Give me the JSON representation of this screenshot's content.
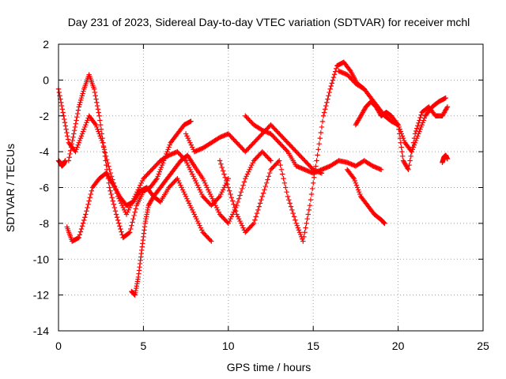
{
  "chart_data": {
    "type": "scatter",
    "title": "Day 231 of 2023, Sidereal Day-to-day VTEC variation (SDTVAR) for receiver mchl",
    "xlabel": "GPS time / hours",
    "ylabel": "SDTVAR / TECUs",
    "xlim": [
      0,
      25
    ],
    "ylim": [
      -14,
      2
    ],
    "xticks": [
      0,
      5,
      10,
      15,
      20,
      25
    ],
    "yticks": [
      -14,
      -12,
      -10,
      -8,
      -6,
      -4,
      -2,
      0,
      2
    ],
    "grid": true,
    "marker": "plus",
    "color": "#ff0000",
    "series": [
      {
        "name": "s1",
        "x": [
          0,
          0.3,
          0.6,
          1.0,
          1.4,
          1.8,
          2.2,
          2.6,
          3.0,
          3.5,
          4.0,
          4.5,
          5.0,
          5.5,
          6.0,
          6.5,
          7.0,
          7.5,
          8.0,
          8.5,
          9.0,
          9.5,
          10.0
        ],
        "y": [
          -0.5,
          -2.0,
          -3.5,
          -4.0,
          -3.0,
          -2.0,
          -2.5,
          -3.5,
          -5.0,
          -6.5,
          -7.5,
          -6.5,
          -5.5,
          -5.0,
          -4.5,
          -4.2,
          -4.0,
          -4.5,
          -5.5,
          -6.5,
          -7.0,
          -6.5,
          -5.5
        ]
      },
      {
        "name": "s2",
        "x": [
          0.6,
          0.9,
          1.2,
          1.5,
          1.8,
          2.1,
          2.4,
          2.7,
          3.0,
          3.4,
          3.8,
          4.2,
          4.6,
          5.0,
          5.4,
          5.8,
          6.2,
          6.6,
          7.0,
          7.4,
          7.8
        ],
        "y": [
          -4.5,
          -3.0,
          -1.5,
          -0.5,
          0.3,
          -0.5,
          -2.0,
          -4.0,
          -6.0,
          -7.5,
          -8.8,
          -8.5,
          -7.0,
          -6.2,
          -6.0,
          -5.5,
          -4.5,
          -3.5,
          -3.0,
          -2.5,
          -2.3
        ]
      },
      {
        "name": "s3",
        "x": [
          0.5,
          0.8,
          1.2,
          1.6,
          2.0,
          2.4,
          2.8,
          3.2,
          3.6,
          4.0,
          4.4,
          4.8,
          5.2,
          5.6,
          6.0,
          6.5,
          7.0,
          7.5,
          8.0,
          8.5,
          9.0
        ],
        "y": [
          -8.2,
          -9.0,
          -8.8,
          -7.5,
          -6.0,
          -5.5,
          -5.2,
          -5.8,
          -6.5,
          -7.0,
          -6.8,
          -6.2,
          -6.0,
          -6.5,
          -6.8,
          -6.0,
          -5.5,
          -6.5,
          -7.5,
          -8.5,
          -9.0
        ]
      },
      {
        "name": "s4",
        "x": [
          4.3,
          4.5,
          4.7,
          4.9,
          5.1,
          5.3,
          5.6,
          6.0,
          6.4,
          6.8,
          7.2,
          7.6,
          8.0,
          8.5,
          9.0,
          9.5,
          10.0,
          10.5,
          11.0,
          11.5,
          12.0,
          12.5
        ],
        "y": [
          -11.8,
          -12.0,
          -11.0,
          -9.5,
          -8.0,
          -7.0,
          -6.5,
          -6.0,
          -5.5,
          -5.0,
          -4.5,
          -4.2,
          -4.8,
          -5.5,
          -6.5,
          -7.5,
          -8.0,
          -7.0,
          -5.5,
          -4.5,
          -4.0,
          -4.5
        ]
      },
      {
        "name": "s5",
        "x": [
          7.5,
          8.0,
          8.5,
          9.0,
          9.5,
          10.0,
          10.5,
          11.0,
          11.5,
          12.0,
          12.5,
          13.0,
          13.5,
          14.0,
          14.5,
          15.0,
          15.5
        ],
        "y": [
          -3.0,
          -4.0,
          -3.8,
          -3.5,
          -3.2,
          -3.0,
          -3.5,
          -4.0,
          -3.5,
          -3.0,
          -2.5,
          -3.0,
          -3.5,
          -4.0,
          -4.5,
          -5.0,
          -5.2
        ]
      },
      {
        "name": "s6",
        "x": [
          9.5,
          10.0,
          10.5,
          11.0,
          11.5,
          12.0,
          12.5,
          13.0,
          13.5,
          14.0,
          14.4,
          14.8,
          15.2,
          15.6,
          16.0,
          16.4,
          16.8,
          17.2,
          17.6,
          18.0
        ],
        "y": [
          -4.5,
          -6.0,
          -7.5,
          -8.5,
          -8.0,
          -6.5,
          -5.0,
          -4.5,
          -6.5,
          -8.0,
          -9.0,
          -7.0,
          -4.5,
          -2.0,
          -0.5,
          0.8,
          1.0,
          0.5,
          -0.2,
          -0.5
        ]
      },
      {
        "name": "s7",
        "x": [
          11.0,
          11.5,
          12.0,
          12.5,
          13.0,
          13.5,
          14.0,
          14.5,
          15.0,
          15.5,
          16.0,
          16.5,
          17.0,
          17.5,
          18.0,
          18.5,
          19.0
        ],
        "y": [
          -2.0,
          -2.5,
          -2.8,
          -3.0,
          -3.5,
          -4.0,
          -4.8,
          -5.0,
          -5.2,
          -5.0,
          -4.8,
          -4.5,
          -4.6,
          -4.8,
          -4.5,
          -4.8,
          -5.0
        ]
      },
      {
        "name": "s8",
        "x": [
          16.5,
          17.0,
          17.5,
          18.0,
          18.4,
          18.8,
          19.2,
          19.6,
          20.0,
          20.4,
          20.8,
          21.2,
          21.6,
          22.0,
          22.4,
          22.8
        ],
        "y": [
          0.5,
          0.3,
          -0.2,
          -0.5,
          -1.0,
          -1.5,
          -2.0,
          -2.3,
          -2.5,
          -3.5,
          -4.0,
          -3.0,
          -2.0,
          -1.5,
          -1.2,
          -1.0
        ]
      },
      {
        "name": "s9",
        "x": [
          17.5,
          17.8,
          18.1,
          18.4,
          18.7,
          19.0,
          19.3,
          19.6,
          20.0,
          20.3,
          20.6,
          21.0,
          21.4,
          21.8,
          22.2,
          22.6,
          22.9
        ],
        "y": [
          -2.5,
          -2.0,
          -1.5,
          -1.2,
          -1.5,
          -2.0,
          -1.8,
          -2.0,
          -2.5,
          -4.5,
          -5.0,
          -3.0,
          -1.8,
          -1.5,
          -2.0,
          -2.0,
          -1.5
        ]
      },
      {
        "name": "s10",
        "x": [
          17.0,
          17.4,
          17.8,
          18.2,
          18.6,
          19.0,
          19.2
        ],
        "y": [
          -5.0,
          -5.5,
          -6.5,
          -7.0,
          -7.5,
          -7.8,
          -8.0
        ]
      },
      {
        "name": "s11",
        "x": [
          22.6,
          22.7,
          22.8,
          22.9
        ],
        "y": [
          -4.6,
          -4.3,
          -4.2,
          -4.4
        ]
      },
      {
        "name": "s12",
        "x": [
          0.0,
          0.1,
          0.2,
          0.3,
          0.4
        ],
        "y": [
          -4.5,
          -4.6,
          -4.8,
          -4.7,
          -4.5
        ]
      }
    ]
  }
}
